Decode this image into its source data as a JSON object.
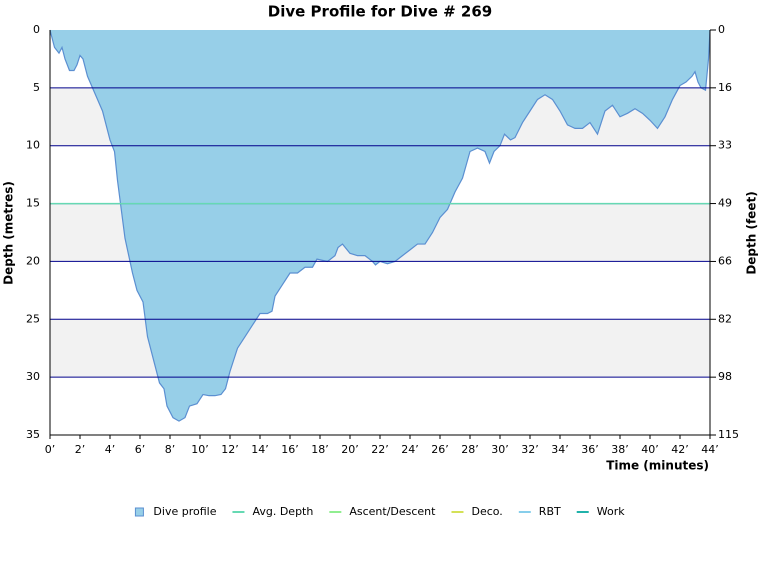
{
  "chart_data": {
    "type": "area",
    "title": "Dive Profile for Dive # 269",
    "x_label": "Time (minutes)",
    "y_label": "Depth (metres)",
    "y2_label": "Depth (feet)",
    "x": [
      0,
      0.3,
      0.6,
      0.8,
      1.0,
      1.3,
      1.6,
      1.8,
      2.0,
      2.2,
      2.5,
      3.0,
      3.5,
      4.0,
      4.3,
      4.5,
      5.0,
      5.5,
      5.8,
      6.2,
      6.5,
      7.0,
      7.3,
      7.6,
      7.8,
      8.2,
      8.6,
      9.0,
      9.3,
      9.8,
      10.2,
      10.6,
      11.0,
      11.4,
      11.7,
      12.0,
      12.5,
      13.0,
      13.5,
      14.0,
      14.5,
      14.8,
      15.0,
      15.5,
      16.0,
      16.5,
      17.0,
      17.5,
      17.8,
      18.5,
      19.0,
      19.2,
      19.5,
      20.0,
      20.5,
      21.0,
      21.5,
      21.7,
      22.0,
      22.5,
      23.0,
      23.5,
      24.0,
      24.5,
      25.0,
      25.5,
      26.0,
      26.5,
      27.0,
      27.5,
      28.0,
      28.5,
      29.0,
      29.3,
      29.6,
      30.0,
      30.3,
      30.7,
      31.0,
      31.5,
      32.0,
      32.5,
      33.0,
      33.5,
      34.0,
      34.5,
      35.0,
      35.5,
      36.0,
      36.5,
      37.0,
      37.5,
      38.0,
      38.5,
      39.0,
      39.5,
      40.0,
      40.5,
      41.0,
      41.5,
      42.0,
      42.4,
      42.8,
      43.0,
      43.2,
      43.4,
      43.7,
      43.9,
      44.0
    ],
    "series": [
      {
        "name": "Dive profile",
        "color": "#97cfe8",
        "values": [
          0,
          1.5,
          2,
          1.5,
          2.5,
          3.5,
          3.5,
          3,
          2.2,
          2.5,
          4,
          5.5,
          7,
          9.5,
          10.5,
          13,
          18,
          21,
          22.5,
          23.5,
          26.5,
          29,
          30.5,
          31,
          32.5,
          33.5,
          33.8,
          33.5,
          32.5,
          32.3,
          31.5,
          31.6,
          31.6,
          31.5,
          31,
          29.5,
          27.5,
          26.5,
          25.5,
          24.5,
          24.5,
          24.3,
          23,
          22,
          21,
          21,
          20.5,
          20.5,
          19.8,
          20,
          19.5,
          18.8,
          18.5,
          19.3,
          19.5,
          19.5,
          20,
          20.3,
          20,
          20.2,
          20,
          19.5,
          19,
          18.5,
          18.5,
          17.5,
          16.2,
          15.5,
          14,
          12.8,
          10.5,
          10.2,
          10.5,
          11.5,
          10.5,
          10,
          9,
          9.5,
          9.3,
          8,
          7,
          6,
          5.6,
          6,
          7,
          8.2,
          8.5,
          8.5,
          8,
          9,
          7,
          6.5,
          7.5,
          7.2,
          6.8,
          7.2,
          7.8,
          8.5,
          7.5,
          6,
          4.8,
          4.5,
          4,
          3.6,
          4.5,
          5,
          5.2,
          2.5,
          0
        ]
      },
      {
        "name": "Avg. Depth",
        "color": "#66d9b3",
        "value": 15
      },
      {
        "name": "Ascent/Descent",
        "color": "#90ee90"
      },
      {
        "name": "Deco.",
        "color": "#d4e157"
      },
      {
        "name": "RBT",
        "color": "#87ceeb"
      },
      {
        "name": "Work",
        "color": "#20b2aa"
      }
    ],
    "xlim": [
      0,
      44
    ],
    "xticks": [
      {
        "value": 0,
        "label": "0’"
      },
      {
        "value": 2,
        "label": "2’"
      },
      {
        "value": 4,
        "label": "4’"
      },
      {
        "value": 6,
        "label": "6’"
      },
      {
        "value": 8,
        "label": "8’"
      },
      {
        "value": 10,
        "label": "10’"
      },
      {
        "value": 12,
        "label": "12’"
      },
      {
        "value": 14,
        "label": "14’"
      },
      {
        "value": 16,
        "label": "16’"
      },
      {
        "value": 18,
        "label": "18’"
      },
      {
        "value": 20,
        "label": "20’"
      },
      {
        "value": 22,
        "label": "22’"
      },
      {
        "value": 24,
        "label": "24’"
      },
      {
        "value": 26,
        "label": "26’"
      },
      {
        "value": 28,
        "label": "28’"
      },
      {
        "value": 30,
        "label": "30’"
      },
      {
        "value": 32,
        "label": "32’"
      },
      {
        "value": 34,
        "label": "34’"
      },
      {
        "value": 36,
        "label": "36’"
      },
      {
        "value": 38,
        "label": "38’"
      },
      {
        "value": 40,
        "label": "40’"
      },
      {
        "value": 42,
        "label": "42’"
      },
      {
        "value": 44,
        "label": "44’"
      }
    ],
    "ylim": [
      0,
      35
    ],
    "yticks": [
      0,
      5,
      10,
      15,
      20,
      25,
      30,
      35
    ],
    "y2lim": [
      0,
      114.83
    ],
    "y2ticks": [
      0,
      {
        "value": 16.4,
        "label": "16"
      },
      {
        "value": 32.81,
        "label": "33"
      },
      {
        "value": 49.21,
        "label": "49"
      },
      {
        "value": 65.62,
        "label": "66"
      },
      {
        "value": 82.02,
        "label": "82"
      },
      {
        "value": 98.43,
        "label": "98"
      },
      {
        "value": 114.83,
        "label": "115"
      }
    ],
    "inverted": true,
    "grid": true,
    "grid_color": "#00008b"
  }
}
